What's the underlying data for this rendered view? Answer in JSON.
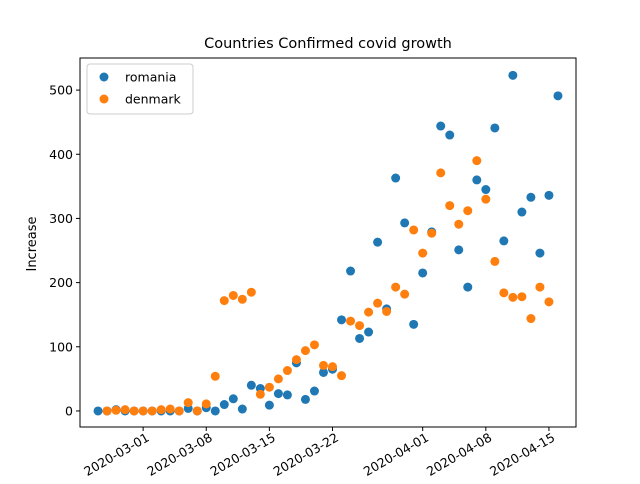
{
  "chart_data": {
    "type": "scatter",
    "title": "Countries Confirmed covid growth",
    "xlabel": "",
    "ylabel": "Increase",
    "x_axis_type": "date",
    "xlim": [
      "2020-02-23",
      "2020-04-18"
    ],
    "ylim": [
      -25,
      550
    ],
    "x_ticks": [
      "2020-03-01",
      "2020-03-08",
      "2020-03-15",
      "2020-03-22",
      "2020-04-01",
      "2020-04-08",
      "2020-04-15"
    ],
    "y_ticks": [
      0,
      100,
      200,
      300,
      400,
      500
    ],
    "grid": false,
    "legend_position": "top-left",
    "series": [
      {
        "name": "romania",
        "color": "#1f77b4",
        "points": [
          [
            "2020-02-25",
            0
          ],
          [
            "2020-02-26",
            0
          ],
          [
            "2020-02-27",
            2
          ],
          [
            "2020-02-28",
            0
          ],
          [
            "2020-02-29",
            0
          ],
          [
            "2020-03-01",
            0
          ],
          [
            "2020-03-02",
            0
          ],
          [
            "2020-03-03",
            0
          ],
          [
            "2020-03-04",
            0
          ],
          [
            "2020-03-05",
            0
          ],
          [
            "2020-03-06",
            4
          ],
          [
            "2020-03-07",
            0
          ],
          [
            "2020-03-08",
            5
          ],
          [
            "2020-03-09",
            0
          ],
          [
            "2020-03-10",
            10
          ],
          [
            "2020-03-11",
            19
          ],
          [
            "2020-03-12",
            3
          ],
          [
            "2020-03-13",
            40
          ],
          [
            "2020-03-14",
            35
          ],
          [
            "2020-03-15",
            9
          ],
          [
            "2020-03-16",
            27
          ],
          [
            "2020-03-17",
            25
          ],
          [
            "2020-03-18",
            75
          ],
          [
            "2020-03-19",
            18
          ],
          [
            "2020-03-20",
            31
          ],
          [
            "2020-03-21",
            60
          ],
          [
            "2020-03-22",
            65
          ],
          [
            "2020-03-23",
            142
          ],
          [
            "2020-03-24",
            218
          ],
          [
            "2020-03-25",
            113
          ],
          [
            "2020-03-26",
            123
          ],
          [
            "2020-03-27",
            263
          ],
          [
            "2020-03-28",
            159
          ],
          [
            "2020-03-29",
            363
          ],
          [
            "2020-03-30",
            293
          ],
          [
            "2020-03-31",
            135
          ],
          [
            "2020-04-01",
            215
          ],
          [
            "2020-04-02",
            279
          ],
          [
            "2020-04-03",
            444
          ],
          [
            "2020-04-04",
            430
          ],
          [
            "2020-04-05",
            251
          ],
          [
            "2020-04-06",
            193
          ],
          [
            "2020-04-07",
            360
          ],
          [
            "2020-04-08",
            345
          ],
          [
            "2020-04-09",
            441
          ],
          [
            "2020-04-10",
            265
          ],
          [
            "2020-04-11",
            523
          ],
          [
            "2020-04-12",
            310
          ],
          [
            "2020-04-13",
            333
          ],
          [
            "2020-04-14",
            246
          ],
          [
            "2020-04-15",
            336
          ],
          [
            "2020-04-16",
            491
          ]
        ]
      },
      {
        "name": "denmark",
        "color": "#ff7f0e",
        "points": [
          [
            "2020-02-26",
            0
          ],
          [
            "2020-02-27",
            1
          ],
          [
            "2020-02-28",
            2
          ],
          [
            "2020-02-29",
            0
          ],
          [
            "2020-03-01",
            0
          ],
          [
            "2020-03-02",
            0
          ],
          [
            "2020-03-03",
            2
          ],
          [
            "2020-03-04",
            3
          ],
          [
            "2020-03-05",
            0
          ],
          [
            "2020-03-06",
            13
          ],
          [
            "2020-03-07",
            0
          ],
          [
            "2020-03-08",
            11
          ],
          [
            "2020-03-09",
            54
          ],
          [
            "2020-03-10",
            172
          ],
          [
            "2020-03-11",
            180
          ],
          [
            "2020-03-12",
            174
          ],
          [
            "2020-03-13",
            185
          ],
          [
            "2020-03-14",
            26
          ],
          [
            "2020-03-15",
            37
          ],
          [
            "2020-03-16",
            50
          ],
          [
            "2020-03-17",
            63
          ],
          [
            "2020-03-18",
            80
          ],
          [
            "2020-03-19",
            94
          ],
          [
            "2020-03-20",
            103
          ],
          [
            "2020-03-21",
            71
          ],
          [
            "2020-03-22",
            69
          ],
          [
            "2020-03-23",
            55
          ],
          [
            "2020-03-24",
            140
          ],
          [
            "2020-03-25",
            133
          ],
          [
            "2020-03-26",
            154
          ],
          [
            "2020-03-27",
            168
          ],
          [
            "2020-03-28",
            155
          ],
          [
            "2020-03-29",
            193
          ],
          [
            "2020-03-30",
            182
          ],
          [
            "2020-03-31",
            282
          ],
          [
            "2020-04-01",
            246
          ],
          [
            "2020-04-02",
            277
          ],
          [
            "2020-04-03",
            371
          ],
          [
            "2020-04-04",
            320
          ],
          [
            "2020-04-05",
            291
          ],
          [
            "2020-04-06",
            312
          ],
          [
            "2020-04-07",
            390
          ],
          [
            "2020-04-08",
            330
          ],
          [
            "2020-04-09",
            233
          ],
          [
            "2020-04-10",
            184
          ],
          [
            "2020-04-11",
            177
          ],
          [
            "2020-04-12",
            178
          ],
          [
            "2020-04-13",
            144
          ],
          [
            "2020-04-14",
            193
          ],
          [
            "2020-04-15",
            170
          ]
        ]
      }
    ]
  }
}
